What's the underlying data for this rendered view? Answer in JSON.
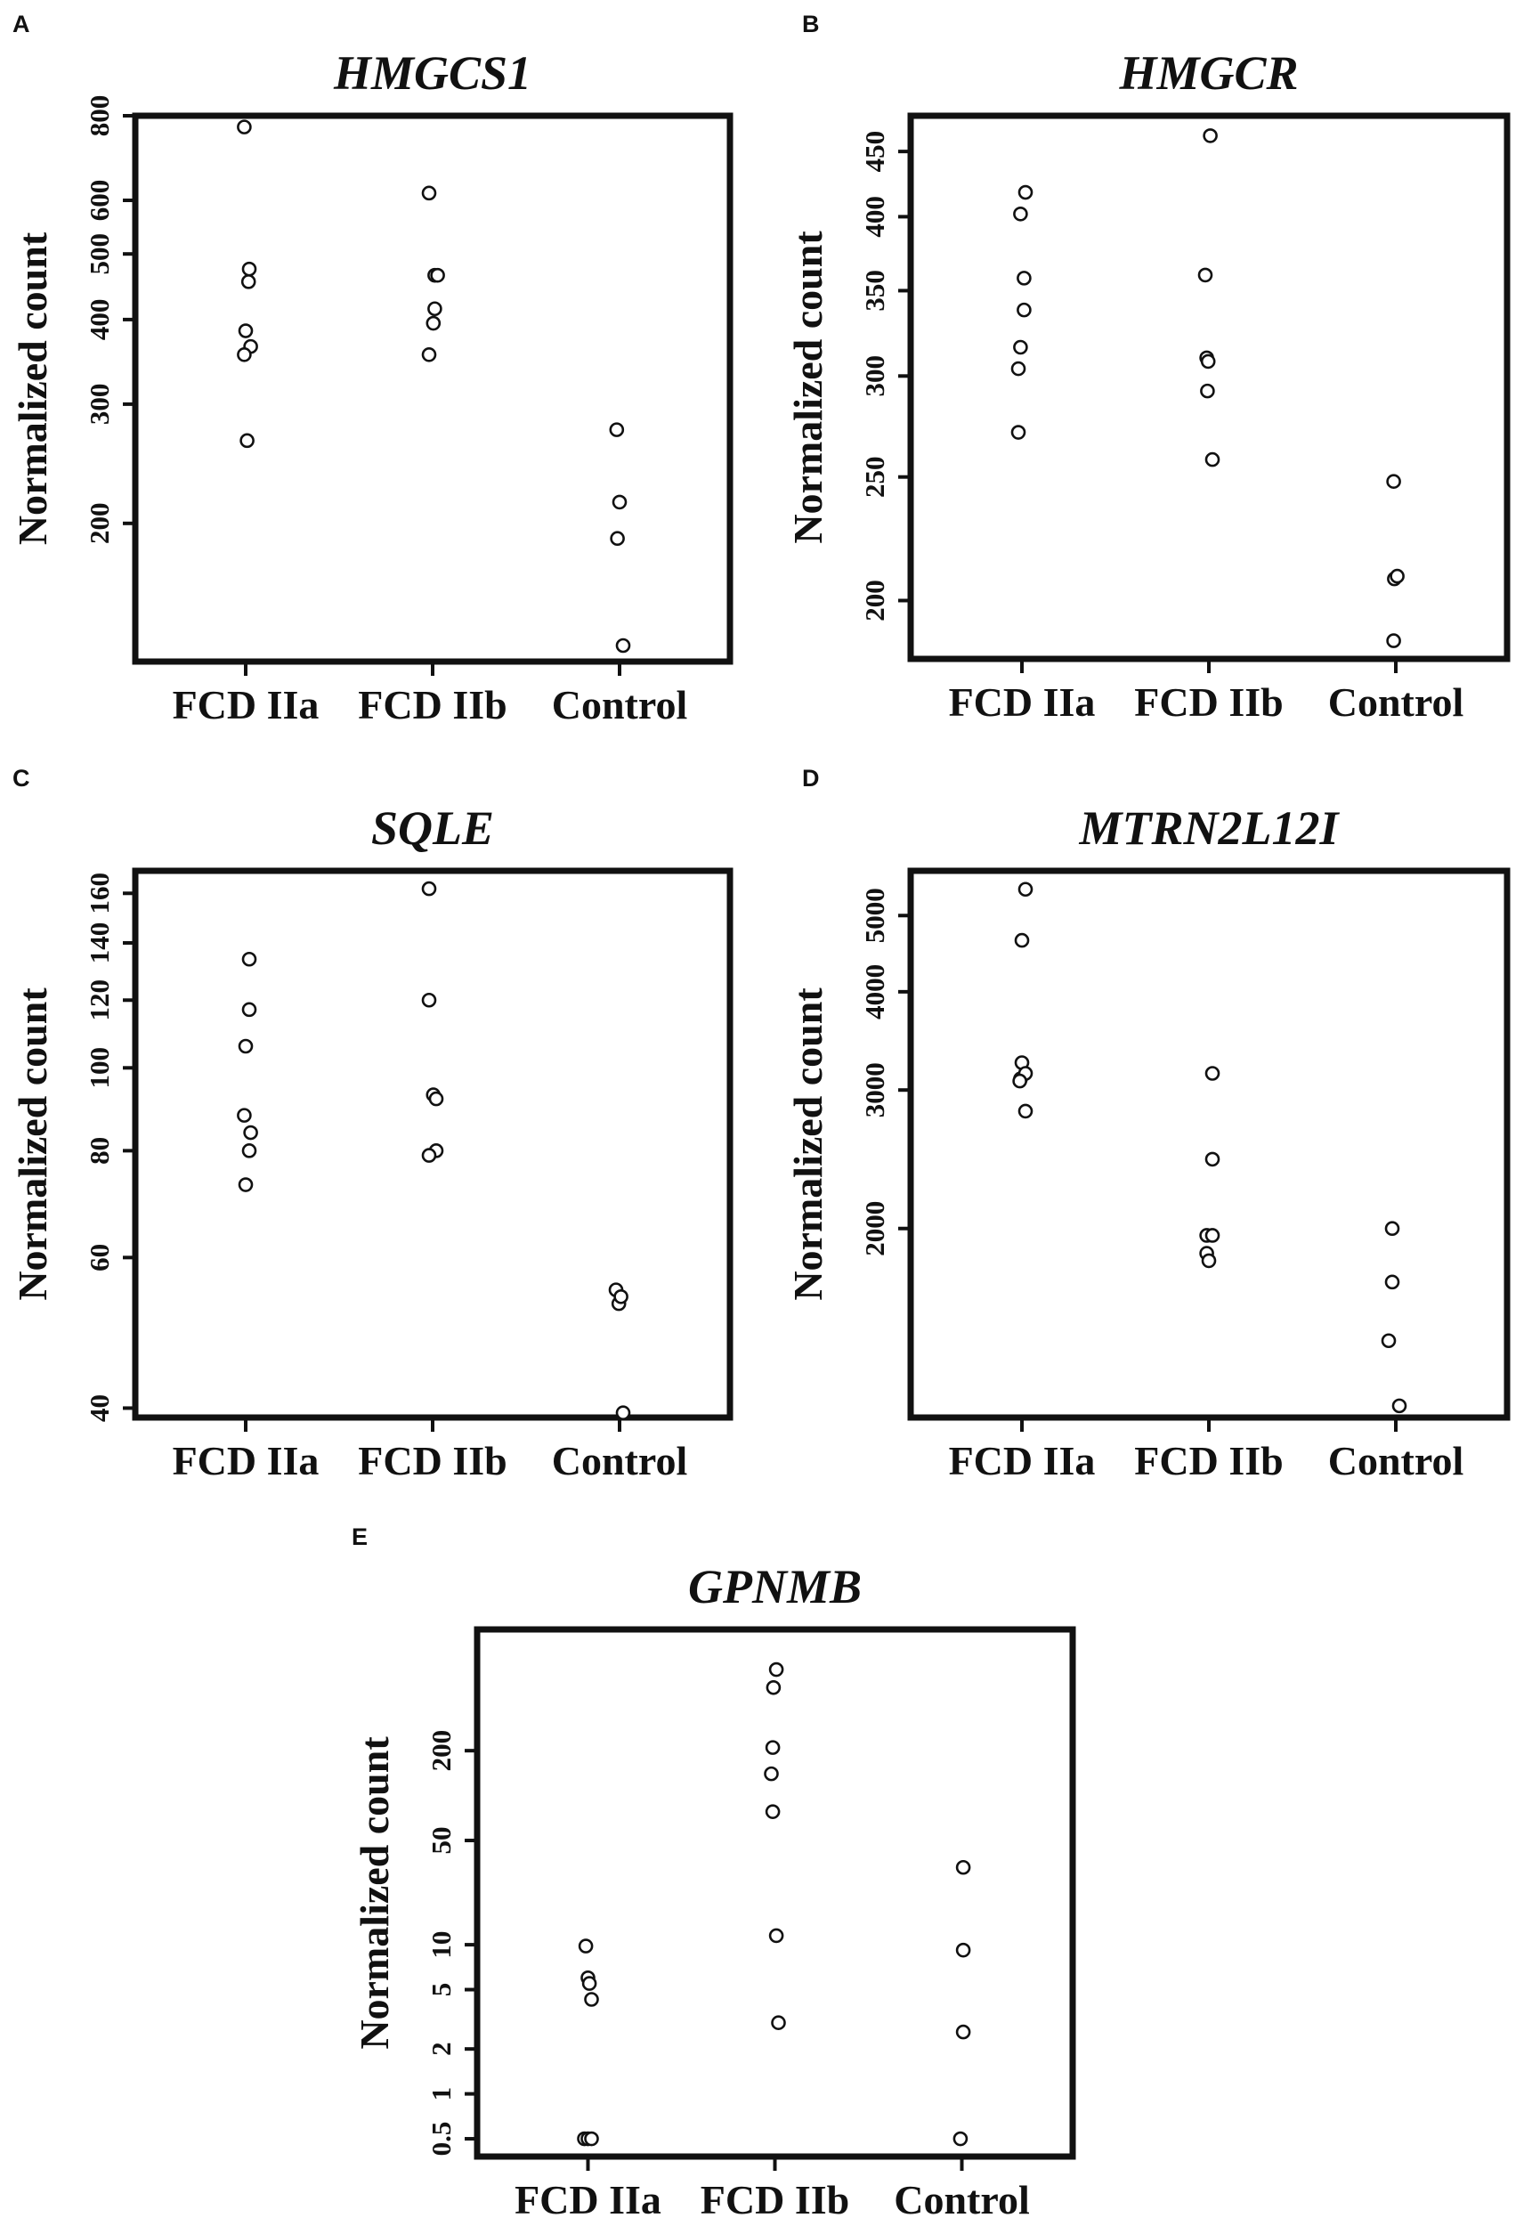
{
  "panels": [
    {
      "letter": "A",
      "chart_data": {
        "type": "scatter",
        "title": "HMGCS1",
        "ylabel": "Normalized count",
        "xlabel": "",
        "scale": "log",
        "ylim": [
          125,
          800
        ],
        "yticks": [
          200,
          300,
          400,
          500,
          600,
          800
        ],
        "categories": [
          "FCD IIa",
          "FCD IIb",
          "Control"
        ],
        "points": [
          [
            [
              -0.02,
              770
            ],
            [
              0.05,
              475
            ],
            [
              0.04,
              455
            ],
            [
              0.0,
              385
            ],
            [
              0.07,
              365
            ],
            [
              -0.02,
              355
            ],
            [
              0.02,
              265
            ]
          ],
          [
            [
              -0.05,
              615
            ],
            [
              0.03,
              465
            ],
            [
              0.07,
              465
            ],
            [
              0.03,
              415
            ],
            [
              0.01,
              395
            ],
            [
              -0.05,
              355
            ]
          ],
          [
            [
              -0.04,
              275
            ],
            [
              0.0,
              215
            ],
            [
              -0.03,
              190
            ],
            [
              0.05,
              132
            ]
          ]
        ]
      }
    },
    {
      "letter": "B",
      "chart_data": {
        "type": "scatter",
        "title": "HMGCR",
        "ylabel": "Normalized count",
        "xlabel": "",
        "scale": "log",
        "ylim": [
          180,
          480
        ],
        "yticks": [
          200,
          250,
          300,
          350,
          400,
          450
        ],
        "categories": [
          "FCD IIa",
          "FCD IIb",
          "Control"
        ],
        "points": [
          [
            [
              0.05,
              418
            ],
            [
              -0.02,
              402
            ],
            [
              0.03,
              358
            ],
            [
              0.03,
              338
            ],
            [
              -0.02,
              316
            ],
            [
              -0.05,
              304
            ],
            [
              -0.05,
              271
            ]
          ],
          [
            [
              -0.05,
              360
            ],
            [
              -0.03,
              310
            ],
            [
              -0.01,
              308
            ],
            [
              -0.02,
              292
            ],
            [
              0.05,
              258
            ],
            [
              0.02,
              463
            ]
          ],
          [
            [
              -0.03,
              248
            ],
            [
              -0.02,
              208
            ],
            [
              0.02,
              209
            ],
            [
              -0.03,
              186
            ]
          ]
        ]
      }
    },
    {
      "letter": "C",
      "chart_data": {
        "type": "scatter",
        "title": "SQLE",
        "ylabel": "Normalized count",
        "xlabel": "",
        "scale": "log",
        "ylim": [
          39,
          170
        ],
        "yticks": [
          40,
          60,
          80,
          100,
          120,
          140,
          160
        ],
        "categories": [
          "FCD IIa",
          "FCD IIb",
          "Control"
        ],
        "points": [
          [
            [
              0.05,
              134
            ],
            [
              0.05,
              117
            ],
            [
              0.0,
              106
            ],
            [
              -0.02,
              88
            ],
            [
              0.07,
              84
            ],
            [
              0.05,
              80
            ],
            [
              0.0,
              73
            ]
          ],
          [
            [
              -0.05,
              162
            ],
            [
              -0.05,
              120
            ],
            [
              0.01,
              93
            ],
            [
              0.05,
              92
            ],
            [
              0.05,
              80
            ],
            [
              -0.05,
              79
            ]
          ],
          [
            [
              -0.05,
              55
            ],
            [
              -0.01,
              53
            ],
            [
              0.02,
              54
            ],
            [
              0.05,
              39.5
            ]
          ]
        ]
      }
    },
    {
      "letter": "D",
      "chart_data": {
        "type": "scatter",
        "title": "MTRN2L12I",
        "ylabel": "Normalized count",
        "xlabel": "",
        "scale": "log",
        "ylim": [
          1150,
          5700
        ],
        "yticks": [
          2000,
          3000,
          4000,
          5000
        ],
        "categories": [
          "FCD IIa",
          "FCD IIb",
          "Control"
        ],
        "points": [
          [
            [
              0.05,
              5400
            ],
            [
              0.0,
              4650
            ],
            [
              0.0,
              3250
            ],
            [
              -0.02,
              3100
            ],
            [
              0.05,
              3150
            ],
            [
              -0.03,
              3080
            ],
            [
              0.05,
              2820
            ]
          ],
          [
            [
              0.05,
              3150
            ],
            [
              0.05,
              2450
            ],
            [
              -0.03,
              1960
            ],
            [
              0.05,
              1960
            ],
            [
              -0.03,
              1860
            ],
            [
              0.0,
              1820
            ]
          ],
          [
            [
              -0.05,
              2000
            ],
            [
              -0.05,
              1710
            ],
            [
              -0.1,
              1440
            ],
            [
              0.05,
              1190
            ]
          ]
        ]
      }
    },
    {
      "letter": "E",
      "chart_data": {
        "type": "scatter",
        "title": "GPNMB",
        "ylabel": "Normalized count",
        "xlabel": "",
        "scale": "log",
        "ylim": [
          0.38,
          1300
        ],
        "yticks": [
          0.5,
          1,
          2,
          5,
          10,
          50,
          200
        ],
        "categories": [
          "FCD IIa",
          "FCD IIb",
          "Control"
        ],
        "points": [
          [
            [
              -0.03,
              9.8
            ],
            [
              0.0,
              6.0
            ],
            [
              0.02,
              5.5
            ],
            [
              0.05,
              4.3
            ],
            [
              -0.05,
              0.5
            ],
            [
              0.0,
              0.5
            ],
            [
              0.05,
              0.5
            ]
          ],
          [
            [
              0.02,
              700
            ],
            [
              -0.02,
              530
            ],
            [
              -0.03,
              210
            ],
            [
              -0.05,
              140
            ],
            [
              -0.03,
              78
            ],
            [
              0.02,
              11.5
            ],
            [
              0.05,
              3.0
            ]
          ],
          [
            [
              0.02,
              33
            ],
            [
              0.02,
              9.2
            ],
            [
              0.02,
              2.6
            ],
            [
              -0.02,
              0.5
            ]
          ]
        ]
      }
    }
  ]
}
